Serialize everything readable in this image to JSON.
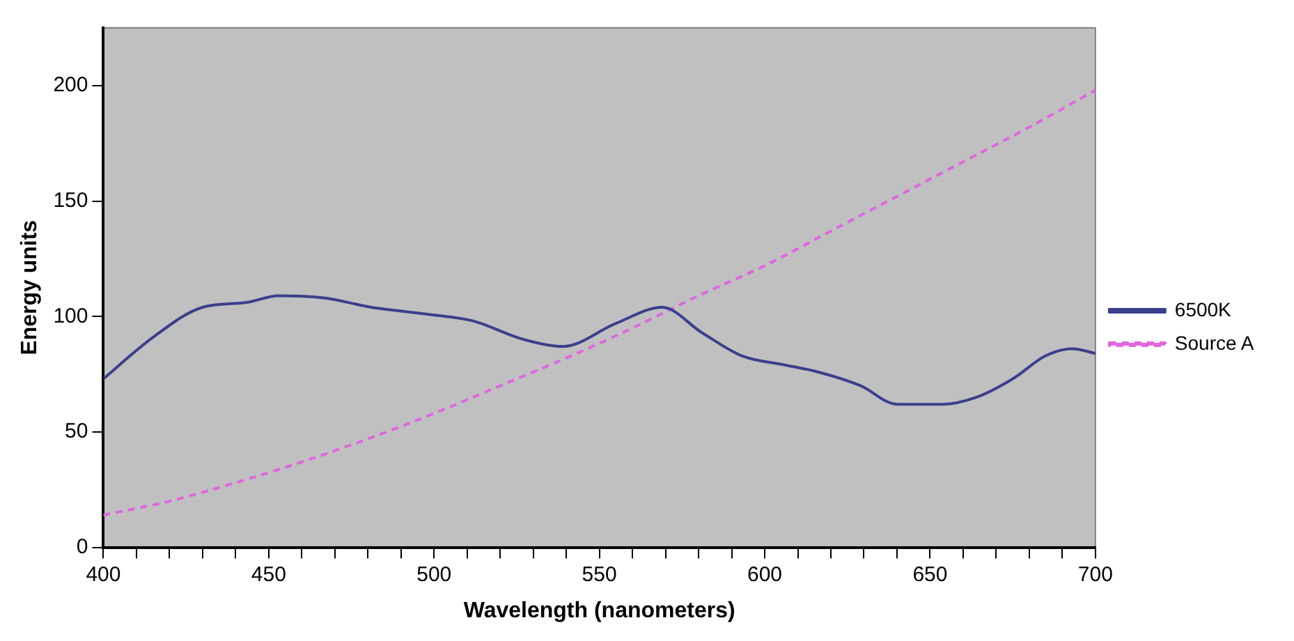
{
  "chart_data": {
    "type": "line",
    "xlabel": "Wavelength (nanometers)",
    "ylabel": "Energy units",
    "xlim": [
      400,
      700
    ],
    "ylim": [
      0,
      225
    ],
    "xticks": [
      400,
      {
        "value": 410,
        "label": null
      },
      {
        "value": 420,
        "label": null
      },
      {
        "value": 430,
        "label": null
      },
      {
        "value": 440,
        "label": null
      },
      450,
      {
        "value": 460,
        "label": null
      },
      {
        "value": 470,
        "label": null
      },
      {
        "value": 480,
        "label": null
      },
      {
        "value": 490,
        "label": null
      },
      500,
      {
        "value": 510,
        "label": null
      },
      {
        "value": 520,
        "label": null
      },
      {
        "value": 530,
        "label": null
      },
      {
        "value": 540,
        "label": null
      },
      550,
      {
        "value": 560,
        "label": null
      },
      {
        "value": 570,
        "label": null
      },
      {
        "value": 580,
        "label": null
      },
      {
        "value": 590,
        "label": null
      },
      600,
      {
        "value": 610,
        "label": null
      },
      {
        "value": 620,
        "label": null
      },
      {
        "value": 630,
        "label": null
      },
      {
        "value": 640,
        "label": null
      },
      650,
      {
        "value": 660,
        "label": null
      },
      {
        "value": 670,
        "label": null
      },
      {
        "value": 680,
        "label": null
      },
      {
        "value": 690,
        "label": null
      },
      700
    ],
    "yticks": [
      0,
      50,
      100,
      150,
      200
    ],
    "grid": false,
    "legend": "right",
    "marker": "none",
    "series": [
      {
        "name": "6500K",
        "color": "#3a3f8c",
        "line_style": "solid",
        "x": [
          400,
          415,
          430,
          443,
          453,
          467,
          481,
          498,
          512,
          525,
          533,
          539,
          555,
          569,
          581,
          593,
          606,
          616,
          629,
          640,
          654,
          664,
          675,
          685,
          693,
          700
        ],
        "values": [
          73,
          91,
          104,
          106,
          109,
          108,
          104,
          101,
          98,
          91,
          88,
          87,
          97,
          104,
          93,
          83,
          79,
          76,
          70,
          62,
          62,
          65,
          73,
          83,
          86,
          84
        ]
      },
      {
        "name": "Source A",
        "color": "#e066e0",
        "line_style": "dashed",
        "x": [
          400,
          420,
          440,
          460,
          480,
          500,
          520,
          540,
          560,
          580,
          600,
          620,
          640,
          660,
          680,
          700
        ],
        "values": [
          14,
          20,
          28,
          37,
          47,
          58,
          70,
          82,
          95,
          109,
          122,
          137,
          152,
          167,
          182,
          198
        ]
      }
    ]
  }
}
